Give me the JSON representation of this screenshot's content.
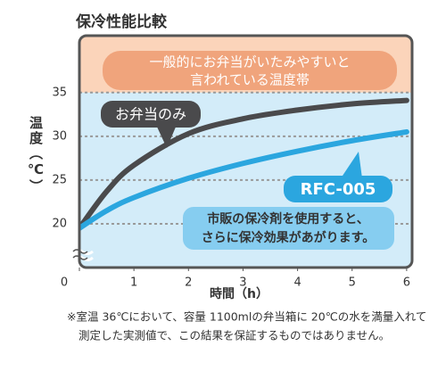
{
  "chart_data": {
    "type": "line",
    "title": "保冷性能比較",
    "x_label": "時間（h）",
    "y_label": "温度（℃）",
    "x": [
      0,
      0.5,
      1,
      2,
      3,
      4,
      5,
      6
    ],
    "series": [
      {
        "name": "お弁当のみ",
        "color": "#4a4a4c",
        "values": [
          19.5,
          23.7,
          26.7,
          30.3,
          32,
          33,
          33.7,
          34.1
        ]
      },
      {
        "name": "RFC-005",
        "color": "#2ba6df",
        "values": [
          19.5,
          21.5,
          23,
          25.2,
          26.9,
          28.3,
          29.5,
          30.5
        ]
      }
    ],
    "xlim": [
      0,
      6.1
    ],
    "xticks": [
      0,
      1,
      2,
      3,
      4,
      5,
      6
    ],
    "ylim": [
      15,
      41.5
    ],
    "yticks": [
      20,
      25,
      30,
      35
    ],
    "grid": true,
    "band_from": 35,
    "band_label": [
      "一般的にお弁当がいたみやすいと",
      "言われている温度帯"
    ],
    "note": [
      "市販の保冷剤を使用すると、",
      "さらに保冷効果があがります。"
    ],
    "footnote": [
      "※室温 36℃において、容量 1100mlの弁当箱に 20℃の水を満量入れて",
      "測定した実測値で、この結果を保証するものではありません。"
    ]
  }
}
